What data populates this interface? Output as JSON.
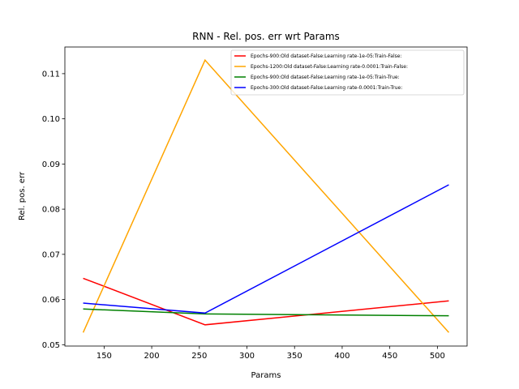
{
  "chart_data": {
    "type": "line",
    "title": "RNN - Rel. pos. err wrt Params",
    "xlabel": "Params",
    "ylabel": "Rel. pos. err",
    "xlim": [
      108.8,
      531.2
    ],
    "ylim": [
      0.0497,
      0.1159
    ],
    "xticks": [
      150,
      200,
      250,
      300,
      350,
      400,
      450,
      500
    ],
    "yticks": [
      0.05,
      0.06,
      0.07,
      0.08,
      0.09,
      0.1,
      0.11
    ],
    "ytick_labels": [
      "0.05",
      "0.06",
      "0.07",
      "0.08",
      "0.09",
      "0.10",
      "0.11"
    ],
    "x": [
      128,
      256,
      512
    ],
    "series": [
      {
        "name": "Epochs-900:Old dataset-False:Learning rate-1e-05:Train-False:",
        "color": "#ff0000",
        "values": [
          0.0647,
          0.0544,
          0.0597
        ]
      },
      {
        "name": "Epochs-1200:Old dataset-False:Learning rate-0.0001:Train-False:",
        "color": "#ffa500",
        "values": [
          0.0527,
          0.113,
          0.0527
        ]
      },
      {
        "name": "Epochs-900:Old dataset-False:Learning rate-1e-05:Train-True:",
        "color": "#008000",
        "values": [
          0.0579,
          0.0568,
          0.0564
        ]
      },
      {
        "name": "Epochs-300:Old dataset-False:Learning rate-0.0001:Train-True:",
        "color": "#0000ff",
        "values": [
          0.0592,
          0.057,
          0.0854
        ]
      }
    ],
    "legend_position": "top-right",
    "grid": false
  }
}
